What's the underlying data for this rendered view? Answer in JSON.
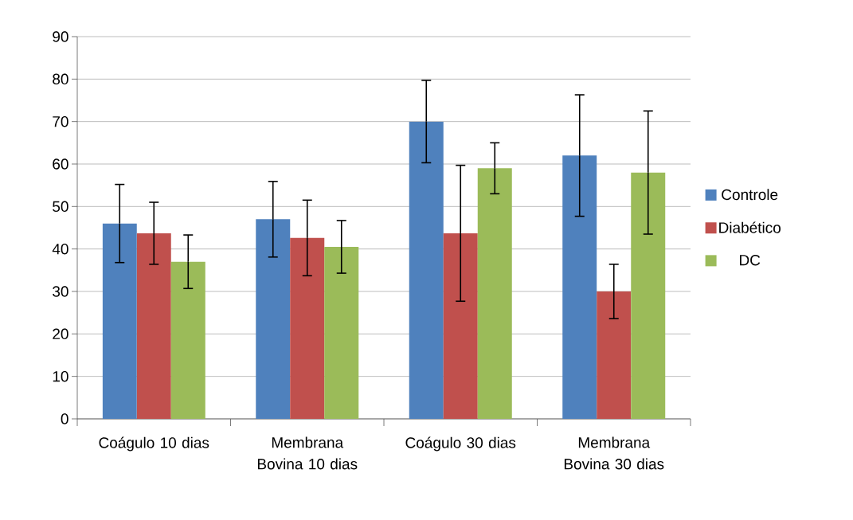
{
  "chart_data": {
    "type": "bar",
    "categories": [
      "Coágulo 10 dias",
      "Membrana Bovina 10 dias",
      "Coágulo 30 dias",
      "Membrana Bovina 30 dias"
    ],
    "series": [
      {
        "name": "Controle",
        "color": "#4f81bd",
        "values": [
          46,
          47,
          70,
          62
        ],
        "errors": [
          9.2,
          8.9,
          9.7,
          14.3
        ]
      },
      {
        "name": "Diabético",
        "color": "#c0504d",
        "values": [
          43.7,
          42.6,
          43.7,
          30
        ],
        "errors": [
          7.3,
          8.9,
          16,
          6.4
        ]
      },
      {
        "name": "DC",
        "color": "#9bbb59",
        "values": [
          37,
          40.5,
          59,
          58
        ],
        "errors": [
          6.3,
          6.2,
          6,
          14.5
        ]
      }
    ],
    "ylim": [
      0,
      90
    ],
    "yticks": [
      0,
      10,
      20,
      30,
      40,
      50,
      60,
      70,
      80,
      90
    ],
    "grid": "y",
    "legend": "right"
  }
}
